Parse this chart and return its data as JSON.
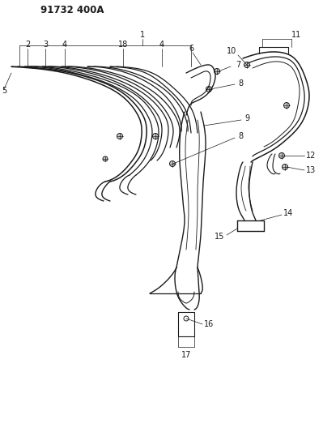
{
  "title": "91732 400A",
  "bg_color": "#ffffff",
  "line_color": "#1a1a1a",
  "title_fontsize": 8.5,
  "label_fontsize": 7.0
}
